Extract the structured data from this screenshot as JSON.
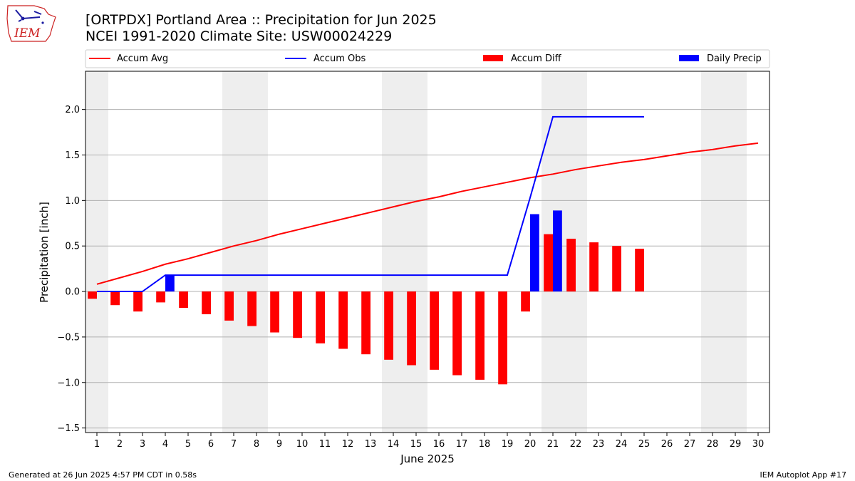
{
  "header": {
    "title_line1": "[ORTPDX] Portland Area :: Precipitation for Jun 2025",
    "title_line2": "NCEI 1991-2020 Climate Site: USW00024229",
    "logo_text": "IEM"
  },
  "footer": {
    "generated": "Generated at 26 Jun 2025 4:57 PM CDT in 0.58s",
    "app": "IEM Autoplot App #17"
  },
  "colors": {
    "accum_avg": "#ff0000",
    "accum_obs": "#0000ff",
    "accum_diff": "#ff0000",
    "daily_precip": "#0000ff",
    "weekend_shade": "#eeeeee",
    "grid": "#b0b0b0"
  },
  "chart_data": {
    "type": "bar",
    "xlabel": "June 2025",
    "ylabel": "Precipitation [inch]",
    "xlim": [
      0.5,
      30.5
    ],
    "ylim": [
      -1.55,
      2.42
    ],
    "yticks": [
      -1.5,
      -1.0,
      -0.5,
      0.0,
      0.5,
      1.0,
      1.5,
      2.0
    ],
    "ytick_labels": [
      "−1.5",
      "−1.0",
      "−0.5",
      "0.0",
      "0.5",
      "1.0",
      "1.5",
      "2.0"
    ],
    "days": [
      1,
      2,
      3,
      4,
      5,
      6,
      7,
      8,
      9,
      10,
      11,
      12,
      13,
      14,
      15,
      16,
      17,
      18,
      19,
      20,
      21,
      22,
      23,
      24,
      25,
      26,
      27,
      28,
      29,
      30
    ],
    "grid": "horizontal",
    "legend_position": "top, above plot",
    "shaded_weekend_days": [
      1,
      7,
      8,
      14,
      15,
      21,
      22,
      28,
      29
    ],
    "series": [
      {
        "name": "Accum Avg",
        "kind": "line",
        "x": [
          1,
          2,
          3,
          4,
          5,
          6,
          7,
          8,
          9,
          10,
          11,
          12,
          13,
          14,
          15,
          16,
          17,
          18,
          19,
          20,
          21,
          22,
          23,
          24,
          25,
          26,
          27,
          28,
          29,
          30
        ],
        "values": [
          0.08,
          0.15,
          0.22,
          0.3,
          0.36,
          0.43,
          0.5,
          0.56,
          0.63,
          0.69,
          0.75,
          0.81,
          0.87,
          0.93,
          0.99,
          1.04,
          1.1,
          1.15,
          1.2,
          1.25,
          1.29,
          1.34,
          1.38,
          1.42,
          1.45,
          1.49,
          1.53,
          1.56,
          1.6,
          1.63
        ]
      },
      {
        "name": "Accum Obs",
        "kind": "line",
        "x": [
          1,
          2,
          3,
          4,
          5,
          6,
          7,
          8,
          9,
          10,
          11,
          12,
          13,
          14,
          15,
          16,
          17,
          18,
          19,
          20,
          21,
          22,
          23,
          24,
          25
        ],
        "values": [
          0.0,
          0.0,
          0.0,
          0.18,
          0.18,
          0.18,
          0.18,
          0.18,
          0.18,
          0.18,
          0.18,
          0.18,
          0.18,
          0.18,
          0.18,
          0.18,
          0.18,
          0.18,
          0.18,
          1.03,
          1.92,
          1.92,
          1.92,
          1.92,
          1.92
        ]
      },
      {
        "name": "Accum Diff",
        "kind": "bar",
        "x": [
          1,
          2,
          3,
          4,
          5,
          6,
          7,
          8,
          9,
          10,
          11,
          12,
          13,
          14,
          15,
          16,
          17,
          18,
          19,
          20,
          21,
          22,
          23,
          24,
          25
        ],
        "values": [
          -0.08,
          -0.15,
          -0.22,
          -0.12,
          -0.18,
          -0.25,
          -0.32,
          -0.38,
          -0.45,
          -0.51,
          -0.57,
          -0.63,
          -0.69,
          -0.75,
          -0.81,
          -0.86,
          -0.92,
          -0.97,
          -1.02,
          -0.22,
          0.63,
          0.58,
          0.54,
          0.5,
          0.47
        ]
      },
      {
        "name": "Daily Precip",
        "kind": "bar",
        "x": [
          4,
          20,
          21
        ],
        "values": [
          0.18,
          0.85,
          0.89
        ]
      }
    ]
  }
}
